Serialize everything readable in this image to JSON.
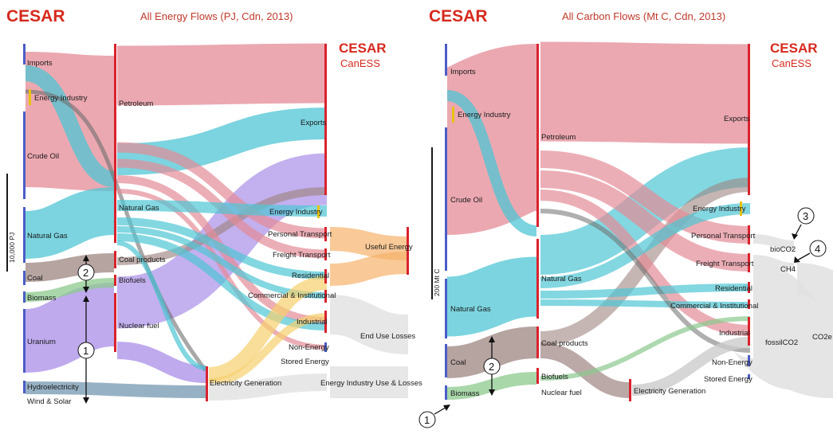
{
  "left": {
    "brand": "CESAR",
    "title": "All Energy Flows (PJ, Cdn, 2013)",
    "logo_brand": "CESAR",
    "logo_sub": "CanESS",
    "scale_label": "10,000 PJ",
    "sources": [
      "Imports",
      "Energy Industry",
      "Crude Oil",
      "Natural Gas",
      "Coal",
      "Biomass",
      "Uranium",
      "Hydroelectricity",
      "Wind & Solar"
    ],
    "carriers": [
      "Petroleum",
      "Natural Gas",
      "Coal products",
      "Biofuels",
      "Nuclear fuel",
      "Electricity Generation"
    ],
    "sinks": [
      "Exports",
      "Energy Industry",
      "Personal Transport",
      "Freight Transport",
      "Residential",
      "Commercial & Institutional",
      "Industrial",
      "Non-Energy",
      "Stored Energy",
      "Energy Industry Use & Losses"
    ],
    "ends": [
      "Useful Energy",
      "End Use Losses"
    ],
    "markers": [
      "1",
      "2"
    ]
  },
  "right": {
    "brand": "CESAR",
    "title": "All Carbon Flows (Mt C, Cdn, 2013)",
    "logo_brand": "CESAR",
    "logo_sub": "CanESS",
    "scale_label": "200 Mt C",
    "sources": [
      "Imports",
      "Energy Industry",
      "Crude Oil",
      "Natural Gas",
      "Coal",
      "Biomass"
    ],
    "carriers": [
      "Petroleum",
      "Natural Gas",
      "Coal products",
      "Biofuels",
      "Nuclear fuel",
      "Electricity Generation"
    ],
    "sinks": [
      "Exports",
      "Energy Industry",
      "Personal Transport",
      "Freight Transport",
      "Residential",
      "Commercial & Institutional",
      "Industrial",
      "Non-Energy",
      "Stored Energy"
    ],
    "gases": [
      "bioCO2",
      "CH4",
      "fossilCO2",
      "CO2e"
    ],
    "markers": [
      "1",
      "2",
      "3",
      "4"
    ]
  },
  "colors": {
    "oil": "#e48b97",
    "gas": "#4fc6d4",
    "coal": "#9e8581",
    "biomass": "#8cc98e",
    "uranium": "#a98ee8",
    "hydro": "#7d9eb5",
    "elec": "#f6d06e",
    "useful": "#f6b26b",
    "loss": "#e4e4e4",
    "grey": "#b8b8b8",
    "dark": "#6e6e6e",
    "brand": "#d62a1e",
    "node_red": "#d9232e",
    "node_blue": "#4a5dc6",
    "node_yellow": "#e8c20e"
  }
}
